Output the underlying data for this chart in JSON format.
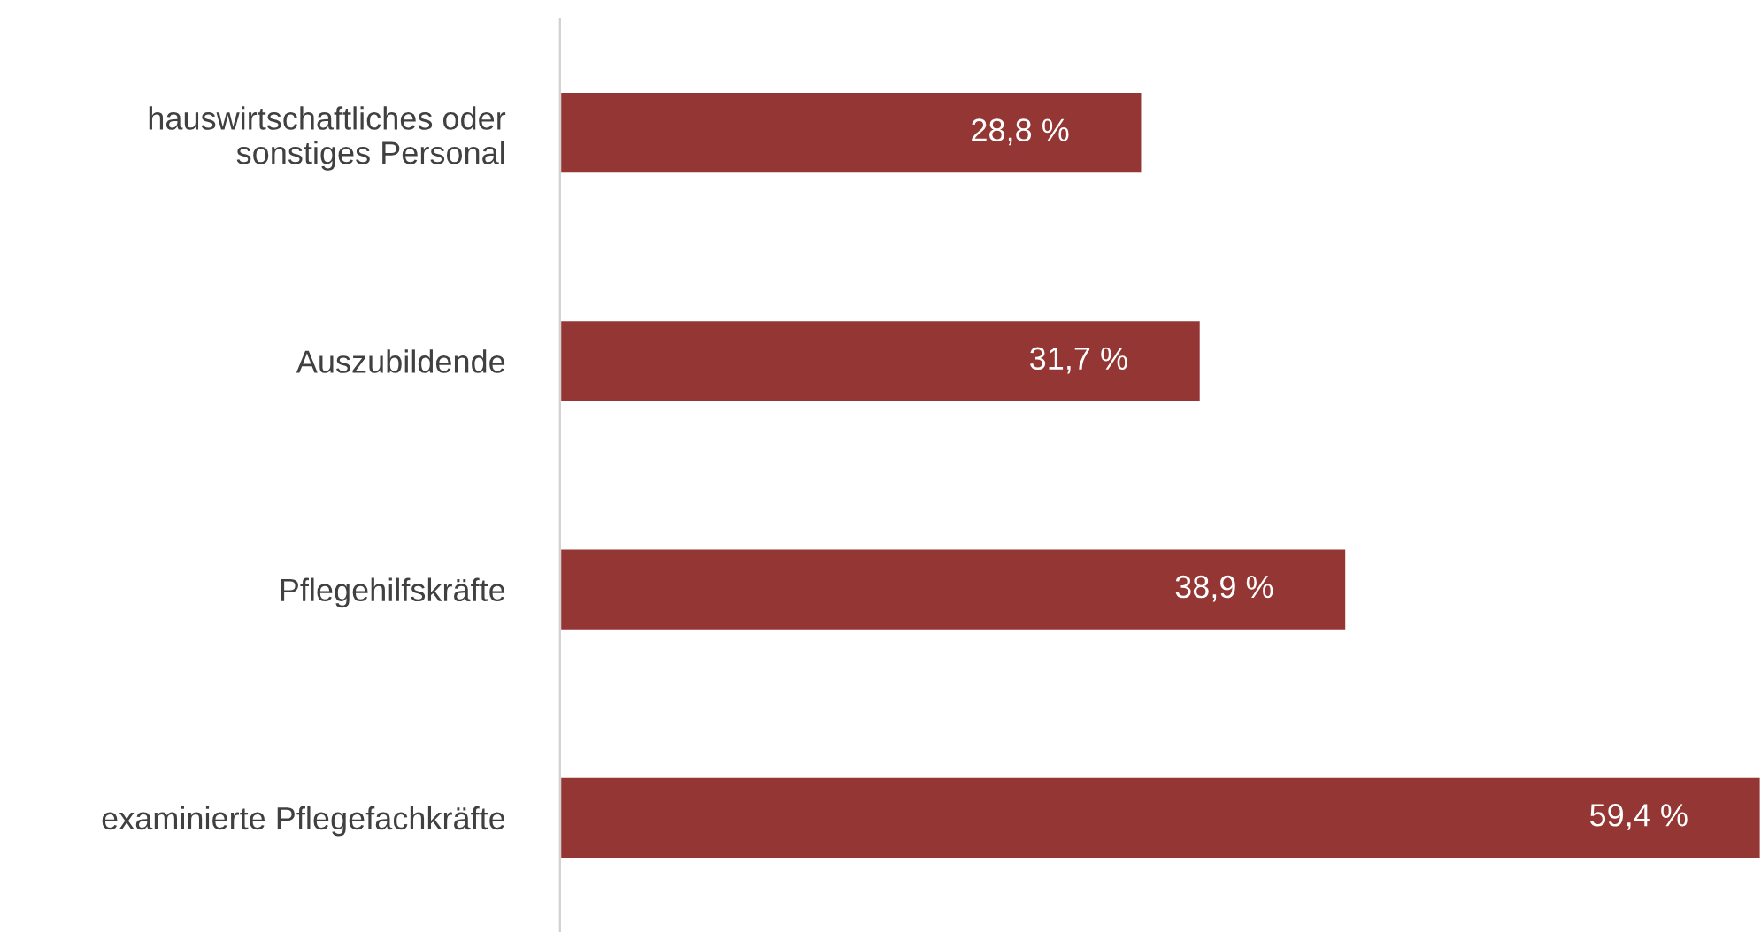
{
  "chart_data": {
    "type": "bar",
    "orientation": "horizontal",
    "categories": [
      "hauswirtschaftliches oder\nsonstiges Personal",
      "Auszubildende",
      "Pflegehilfskräfte",
      "examinierte Pflegefachkräfte"
    ],
    "values": [
      28.8,
      31.7,
      38.9,
      59.4
    ],
    "value_labels": [
      "28,8 %",
      "31,7 %",
      "38,9 %",
      "59,4 %"
    ],
    "color": "#943634",
    "grid": false,
    "legend": false
  }
}
